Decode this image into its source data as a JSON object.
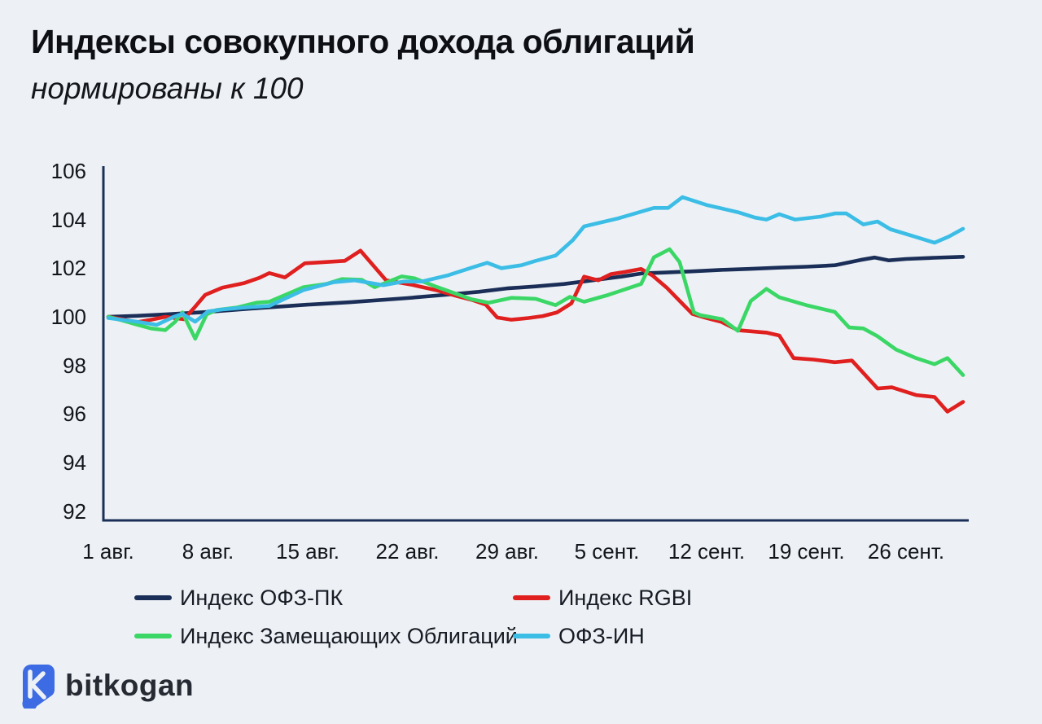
{
  "page": {
    "background": "#edf1f5"
  },
  "header": {
    "title": "Индексы совокупного дохода облигаций",
    "subtitle": "нормированы к 100"
  },
  "footer": {
    "brand": "bitkogan",
    "brand_color": "#3d6be3"
  },
  "chart_data": {
    "type": "line",
    "title": "Индексы совокупного дохода облигаций",
    "subtitle": "нормированы к 100",
    "grid": false,
    "axis_color": "#1a2e57",
    "x_domain_days": [
      0,
      60
    ],
    "y_domain": [
      92,
      106
    ],
    "y_ticks": [
      106,
      104,
      102,
      100,
      98,
      96,
      94,
      92
    ],
    "x_ticks": [
      {
        "day": 0,
        "label": "1 авг."
      },
      {
        "day": 7,
        "label": "8 авг."
      },
      {
        "day": 14,
        "label": "15 авг."
      },
      {
        "day": 21,
        "label": "22 авг."
      },
      {
        "day": 28,
        "label": "29 авг."
      },
      {
        "day": 35,
        "label": "5 сент."
      },
      {
        "day": 42,
        "label": "12 сент."
      },
      {
        "day": 49,
        "label": "19 сент."
      },
      {
        "day": 56,
        "label": "26 сент."
      }
    ],
    "legend": {
      "position": "bottom",
      "rows": 2,
      "columns": 2
    },
    "series": [
      {
        "name": "Индекс ОФЗ-ПК",
        "color": "#1a2e57",
        "points": [
          [
            0,
            100
          ],
          [
            2,
            100.04
          ],
          [
            4,
            100.1
          ],
          [
            7,
            100.2
          ],
          [
            10,
            100.34
          ],
          [
            14,
            100.5
          ],
          [
            17,
            100.6
          ],
          [
            21,
            100.77
          ],
          [
            24,
            100.92
          ],
          [
            26,
            101.03
          ],
          [
            28,
            101.17
          ],
          [
            30,
            101.25
          ],
          [
            32,
            101.35
          ],
          [
            34,
            101.5
          ],
          [
            36,
            101.65
          ],
          [
            37.5,
            101.79
          ],
          [
            39,
            101.82
          ],
          [
            41,
            101.87
          ],
          [
            43,
            101.93
          ],
          [
            45,
            101.97
          ],
          [
            47,
            102.02
          ],
          [
            49,
            102.06
          ],
          [
            51,
            102.12
          ],
          [
            52.8,
            102.34
          ],
          [
            53.8,
            102.44
          ],
          [
            54.8,
            102.32
          ],
          [
            56,
            102.38
          ],
          [
            58,
            102.43
          ],
          [
            60,
            102.47
          ]
        ]
      },
      {
        "name": "Индекс RGBI",
        "color": "#e01f1f",
        "points": [
          [
            0,
            100
          ],
          [
            1,
            99.9
          ],
          [
            2,
            99.78
          ],
          [
            3,
            99.88
          ],
          [
            4,
            100.0
          ],
          [
            5.3,
            99.9
          ],
          [
            6,
            100.35
          ],
          [
            6.8,
            100.9
          ],
          [
            8,
            101.2
          ],
          [
            9.5,
            101.38
          ],
          [
            10.6,
            101.6
          ],
          [
            11.3,
            101.8
          ],
          [
            12.4,
            101.62
          ],
          [
            13.8,
            102.2
          ],
          [
            15.2,
            102.25
          ],
          [
            16.6,
            102.3
          ],
          [
            17.7,
            102.72
          ],
          [
            19.5,
            101.5
          ],
          [
            21.3,
            101.32
          ],
          [
            23,
            101.1
          ],
          [
            24.5,
            100.85
          ],
          [
            25.5,
            100.7
          ],
          [
            26.5,
            100.5
          ],
          [
            27.3,
            99.97
          ],
          [
            28.3,
            99.88
          ],
          [
            29.5,
            99.95
          ],
          [
            30.5,
            100.03
          ],
          [
            31.5,
            100.18
          ],
          [
            32.5,
            100.55
          ],
          [
            33.4,
            101.65
          ],
          [
            34.4,
            101.5
          ],
          [
            35.3,
            101.76
          ],
          [
            36.3,
            101.85
          ],
          [
            37.4,
            101.97
          ],
          [
            38.2,
            101.7
          ],
          [
            39.2,
            101.2
          ],
          [
            40.2,
            100.6
          ],
          [
            41,
            100.12
          ],
          [
            42,
            99.95
          ],
          [
            43,
            99.8
          ],
          [
            44.2,
            99.45
          ],
          [
            45.2,
            99.4
          ],
          [
            46.2,
            99.35
          ],
          [
            47.1,
            99.23
          ],
          [
            48.1,
            98.3
          ],
          [
            49.5,
            98.24
          ],
          [
            51,
            98.13
          ],
          [
            52.2,
            98.2
          ],
          [
            54,
            97.05
          ],
          [
            55,
            97.1
          ],
          [
            56.7,
            96.78
          ],
          [
            58,
            96.7
          ],
          [
            58.9,
            96.1
          ],
          [
            60,
            96.5
          ]
        ]
      },
      {
        "name": "Индекс Замещающих Облигаций",
        "color": "#3bd766",
        "points": [
          [
            0,
            100
          ],
          [
            1,
            99.85
          ],
          [
            2,
            99.68
          ],
          [
            3,
            99.52
          ],
          [
            4,
            99.45
          ],
          [
            4.7,
            99.8
          ],
          [
            5.2,
            100.18
          ],
          [
            6.1,
            99.1
          ],
          [
            6.9,
            100.1
          ],
          [
            7.6,
            100.28
          ],
          [
            9,
            100.38
          ],
          [
            10.4,
            100.58
          ],
          [
            11.3,
            100.62
          ],
          [
            13.7,
            101.22
          ],
          [
            15.3,
            101.35
          ],
          [
            16.4,
            101.55
          ],
          [
            17.8,
            101.52
          ],
          [
            18.7,
            101.22
          ],
          [
            20.6,
            101.66
          ],
          [
            21.5,
            101.58
          ],
          [
            23.1,
            101.22
          ],
          [
            25.5,
            100.72
          ],
          [
            26.7,
            100.58
          ],
          [
            28.3,
            100.78
          ],
          [
            30,
            100.74
          ],
          [
            31.4,
            100.48
          ],
          [
            32.4,
            100.82
          ],
          [
            33.4,
            100.62
          ],
          [
            35.1,
            100.9
          ],
          [
            37.4,
            101.35
          ],
          [
            38.3,
            102.45
          ],
          [
            39.4,
            102.78
          ],
          [
            40.1,
            102.25
          ],
          [
            41.1,
            100.18
          ],
          [
            41.6,
            100.06
          ],
          [
            43.1,
            99.9
          ],
          [
            44.2,
            99.42
          ],
          [
            45.1,
            100.65
          ],
          [
            46.2,
            101.15
          ],
          [
            47.1,
            100.8
          ],
          [
            49,
            100.48
          ],
          [
            51,
            100.2
          ],
          [
            52,
            99.56
          ],
          [
            53,
            99.52
          ],
          [
            54,
            99.2
          ],
          [
            55.3,
            98.65
          ],
          [
            56.7,
            98.3
          ],
          [
            58,
            98.05
          ],
          [
            58.9,
            98.3
          ],
          [
            60,
            97.6
          ]
        ]
      },
      {
        "name": "ОФЗ-ИН",
        "color": "#3cbde6",
        "points": [
          [
            0,
            99.95
          ],
          [
            2,
            99.8
          ],
          [
            3.4,
            99.67
          ],
          [
            4.6,
            100.0
          ],
          [
            5.2,
            100.12
          ],
          [
            6.1,
            99.8
          ],
          [
            7,
            100.22
          ],
          [
            8,
            100.3
          ],
          [
            9.5,
            100.38
          ],
          [
            11.3,
            100.45
          ],
          [
            13.7,
            101.1
          ],
          [
            15.8,
            101.42
          ],
          [
            17.3,
            101.5
          ],
          [
            19.3,
            101.3
          ],
          [
            20.7,
            101.45
          ],
          [
            22,
            101.45
          ],
          [
            23.8,
            101.7
          ],
          [
            25.5,
            102.02
          ],
          [
            26.6,
            102.22
          ],
          [
            27.6,
            102.0
          ],
          [
            29,
            102.12
          ],
          [
            30,
            102.3
          ],
          [
            31.4,
            102.52
          ],
          [
            32.6,
            103.15
          ],
          [
            33.4,
            103.72
          ],
          [
            34.7,
            103.9
          ],
          [
            35.8,
            104.05
          ],
          [
            38.3,
            104.48
          ],
          [
            39.3,
            104.48
          ],
          [
            40.3,
            104.92
          ],
          [
            42,
            104.6
          ],
          [
            44.2,
            104.3
          ],
          [
            45.4,
            104.08
          ],
          [
            46.2,
            104.0
          ],
          [
            47.1,
            104.22
          ],
          [
            48.2,
            104.0
          ],
          [
            50,
            104.12
          ],
          [
            51,
            104.25
          ],
          [
            51.8,
            104.25
          ],
          [
            53,
            103.8
          ],
          [
            54,
            103.92
          ],
          [
            54.9,
            103.6
          ],
          [
            56.7,
            103.28
          ],
          [
            58,
            103.05
          ],
          [
            59,
            103.3
          ],
          [
            60,
            103.62
          ]
        ]
      }
    ]
  }
}
